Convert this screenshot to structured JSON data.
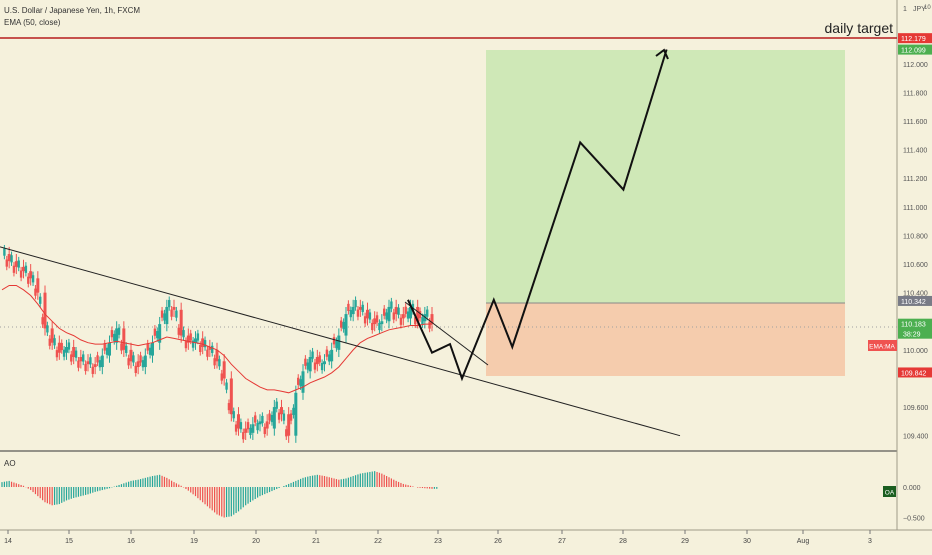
{
  "header": {
    "symbol_title": "U.S. Dollar / Japanese Yen, 1h, FXCM",
    "indicator_title": "EMA (50, close)",
    "top_right_label": "JPY",
    "top_right_scale": "1",
    "top_right_num": "10",
    "ao_title": "AO"
  },
  "annotations": {
    "daily_target": "daily target"
  },
  "colors": {
    "background": "#f5f1dc",
    "up_candle": "#26a69a",
    "down_candle": "#ef5350",
    "ema_line": "#e53935",
    "target_line": "#b71c1c",
    "target_zone": "#c8e6b0",
    "stop_zone": "#f5c6a5",
    "price_badge_green": "#4caf50",
    "price_badge_red": "#e53935",
    "price_badge_gray": "#787b86",
    "oa_badge": "#1b5e20"
  },
  "price_axis": {
    "ticks": [
      "112.000",
      "111.800",
      "111.600",
      "111.400",
      "111.200",
      "111.000",
      "110.800",
      "110.600",
      "110.400",
      "110.000",
      "109.600",
      "109.400"
    ],
    "badges": [
      {
        "value": "112.179",
        "kind": "red"
      },
      {
        "value": "112.099",
        "kind": "green"
      },
      {
        "value": "110.342",
        "kind": "gray"
      },
      {
        "value": "110.183",
        "kind": "green",
        "sub": "38:29"
      },
      {
        "value": "EMA:MA",
        "kind": "red_small"
      },
      {
        "value": "109.842",
        "kind": "red"
      }
    ]
  },
  "ao_axis": {
    "ticks": [
      "0.000",
      "−0.500"
    ],
    "badge": "OA"
  },
  "time_axis": {
    "ticks": [
      "14",
      "15",
      "16",
      "19",
      "20",
      "21",
      "22",
      "23",
      "26",
      "27",
      "28",
      "29",
      "30",
      "Aug",
      "3"
    ]
  },
  "chart_data": {
    "type": "candlestick",
    "title": "U.S. Dollar / Japanese Yen, 1h, FXCM",
    "ylim": [
      109.3,
      112.25
    ],
    "grid": false,
    "levels": {
      "daily_target": 112.179,
      "target_top": 112.099,
      "entry": 110.342,
      "current": 110.183,
      "stop": 109.842
    },
    "trendline": [
      {
        "x": "14",
        "y": 110.72
      },
      {
        "x": "29",
        "y": 109.4
      }
    ],
    "projection_path": [
      {
        "x": "22.5",
        "y": 110.35
      },
      {
        "x": "22.9",
        "y": 109.98
      },
      {
        "x": "23.2",
        "y": 110.04
      },
      {
        "x": "23.4",
        "y": 109.8
      },
      {
        "x": "25.9",
        "y": 110.35
      },
      {
        "x": "26.2",
        "y": 110.02
      },
      {
        "x": "27.3",
        "y": 111.45
      },
      {
        "x": "28.0",
        "y": 111.12
      },
      {
        "x": "28.7",
        "y": 112.1
      }
    ],
    "price_series": [
      110.67,
      110.62,
      110.58,
      110.55,
      110.5,
      110.4,
      110.15,
      110.05,
      109.98,
      110.02,
      109.95,
      109.92,
      109.9,
      109.88,
      109.96,
      110.05,
      110.15,
      110.0,
      109.92,
      109.88,
      109.96,
      110.05,
      110.18,
      110.3,
      110.28,
      110.1,
      110.05,
      110.08,
      110.02,
      110.0,
      109.92,
      109.8,
      109.55,
      109.45,
      109.42,
      109.48,
      109.5,
      109.45,
      109.6,
      109.55,
      109.4,
      109.7,
      109.85,
      109.95,
      109.9,
      109.92,
      110.0,
      110.1,
      110.25,
      110.3,
      110.28,
      110.22,
      110.18,
      110.2,
      110.3,
      110.25,
      110.22,
      110.3,
      110.2,
      110.25,
      110.18
    ],
    "ema_series": [
      110.42,
      110.45,
      110.45,
      110.42,
      110.38,
      110.32,
      110.25,
      110.2,
      110.15,
      110.12,
      110.1,
      110.07,
      110.05,
      110.04,
      110.04,
      110.05,
      110.06,
      110.05,
      110.04,
      110.03,
      110.04,
      110.05,
      110.07,
      110.09,
      110.08,
      110.07,
      110.06,
      110.05,
      110.04,
      110.02,
      110.0,
      109.96,
      109.9,
      109.85,
      109.8,
      109.77,
      109.74,
      109.72,
      109.72,
      109.71,
      109.7,
      109.72,
      109.74,
      109.77,
      109.79,
      109.81,
      109.84,
      109.88,
      109.94,
      110.0,
      110.05,
      110.08,
      110.1,
      110.12,
      110.14,
      110.15,
      110.16,
      110.17,
      110.17,
      110.18,
      110.18
    ],
    "ao_series": [
      0.08,
      0.1,
      0.06,
      0.02,
      -0.05,
      -0.15,
      -0.25,
      -0.3,
      -0.28,
      -0.22,
      -0.18,
      -0.15,
      -0.12,
      -0.08,
      -0.05,
      -0.02,
      0.02,
      0.06,
      0.1,
      0.12,
      0.15,
      0.18,
      0.2,
      0.15,
      0.08,
      0.02,
      -0.06,
      -0.15,
      -0.25,
      -0.35,
      -0.45,
      -0.5,
      -0.48,
      -0.4,
      -0.3,
      -0.22,
      -0.15,
      -0.1,
      -0.05,
      0.0,
      0.05,
      0.1,
      0.15,
      0.18,
      0.2,
      0.18,
      0.15,
      0.12,
      0.14,
      0.18,
      0.22,
      0.24,
      0.26,
      0.22,
      0.16,
      0.1,
      0.05,
      0.02,
      -0.01,
      -0.02,
      -0.03
    ]
  }
}
